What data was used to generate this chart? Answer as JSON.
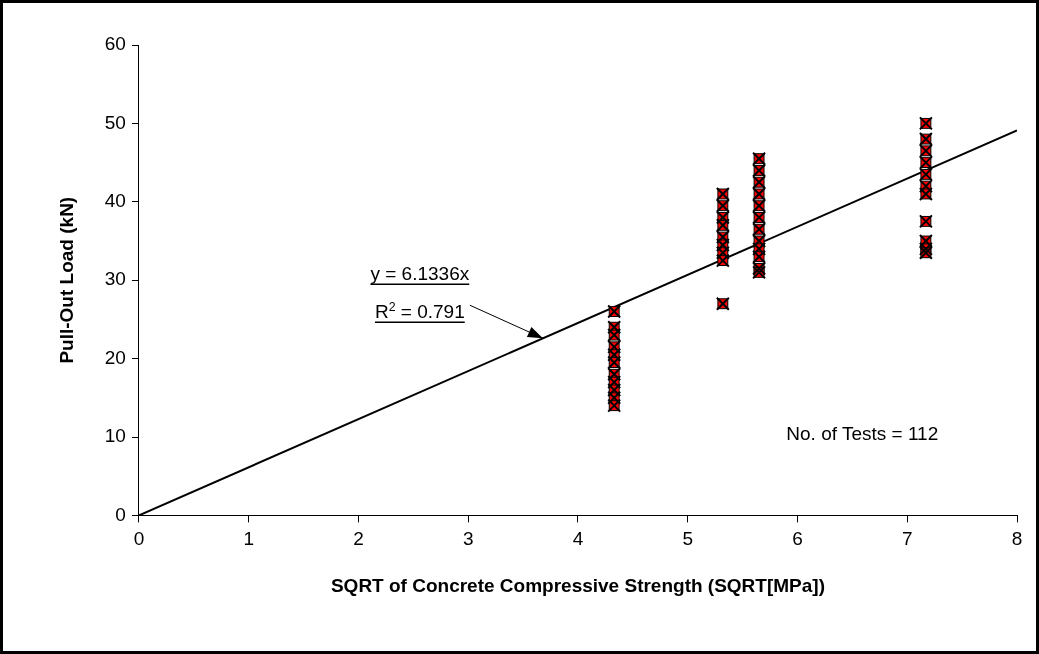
{
  "chart_data": {
    "type": "scatter",
    "xlabel": "SQRT of Concrete Compressive Strength (SQRT[MPa])",
    "ylabel": "Pull-Out Load (kN)",
    "xlim": [
      0,
      8
    ],
    "xticks": [
      0,
      1,
      2,
      3,
      4,
      5,
      6,
      7,
      8
    ],
    "ylim": [
      0,
      60
    ],
    "yticks": [
      0,
      10,
      20,
      30,
      40,
      50,
      60
    ],
    "grid": false,
    "legend": false,
    "marker": "square",
    "series": [
      {
        "color": "#ff0000",
        "x": [
          4.33,
          4.33,
          4.33,
          4.33,
          4.33,
          4.33,
          4.33,
          4.33,
          4.33,
          4.33,
          4.33,
          5.32,
          5.32,
          5.32,
          5.32,
          5.32,
          5.32,
          5.32,
          5.32,
          5.32,
          5.65,
          5.65,
          5.65,
          5.65,
          5.65,
          5.65,
          5.65,
          5.65,
          5.65,
          5.65,
          5.65,
          5.65,
          7.17,
          7.17,
          7.17,
          7.17,
          7.17,
          7.17,
          7.17,
          7.17,
          7.17,
          7.17,
          7.17
        ],
        "values": [
          26,
          24,
          23,
          21.5,
          20.5,
          19.5,
          18,
          17,
          16,
          15,
          14,
          41,
          39.5,
          38,
          37,
          35.5,
          34.5,
          33.5,
          32.5,
          27,
          45.5,
          44,
          42.5,
          41,
          39.5,
          38,
          36.5,
          35,
          34,
          33,
          31.5,
          31,
          50,
          48,
          46.5,
          45,
          43.5,
          42,
          41,
          37.5,
          35,
          34,
          33.5
        ]
      },
      {
        "type": "line",
        "color": "#000000",
        "marker": "none",
        "x": [
          0,
          8
        ],
        "values": [
          0,
          49.1
        ]
      }
    ],
    "annotations": [
      {
        "text": "y = 6.1336x\nR$^{2}$ = 0.791",
        "x": 3.68,
        "y": 22.6
      },
      "No. of Tests = 112"
    ]
  }
}
